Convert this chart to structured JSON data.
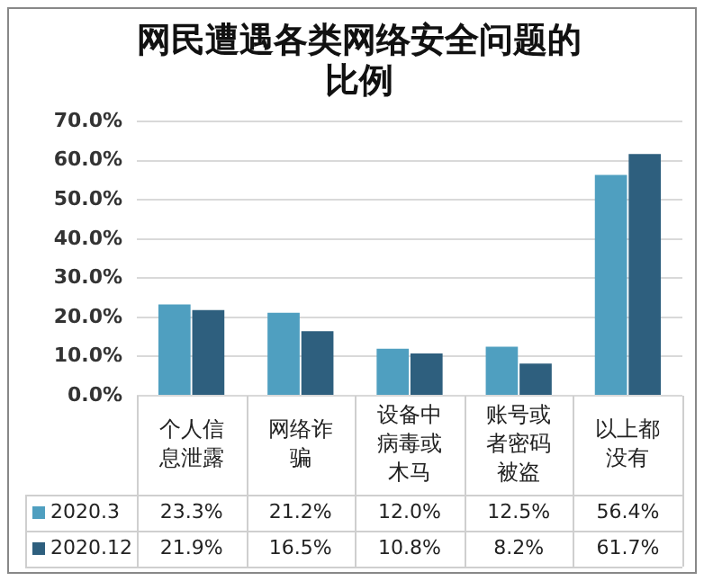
{
  "chart_data": {
    "type": "bar",
    "title": "网民遭遇各类网络安全问题的比例",
    "categories": [
      "个人信息泄露",
      "网络诈骗",
      "设备中病毒或木马",
      "账号或者密码被盗",
      "以上都没有"
    ],
    "series": [
      {
        "name": "2020.3",
        "color": "#4f9fc0",
        "values": [
          23.3,
          21.2,
          12.0,
          12.5,
          56.4
        ],
        "value_labels": [
          "23.3%",
          "21.2%",
          "12.0%",
          "12.5%",
          "56.4%"
        ]
      },
      {
        "name": "2020.12",
        "color": "#2e5f7e",
        "values": [
          21.9,
          16.5,
          10.8,
          8.2,
          61.7
        ],
        "value_labels": [
          "21.9%",
          "16.5%",
          "10.8%",
          "8.2%",
          "61.7%"
        ]
      }
    ],
    "ylim": [
      0,
      70
    ],
    "yticks": [
      {
        "value": 0,
        "label": "0.0%"
      },
      {
        "value": 10,
        "label": "10.0%"
      },
      {
        "value": 20,
        "label": "20.0%"
      },
      {
        "value": 30,
        "label": "30.0%"
      },
      {
        "value": 40,
        "label": "40.0%"
      },
      {
        "value": 50,
        "label": "50.0%"
      },
      {
        "value": 60,
        "label": "60.0%"
      },
      {
        "value": 70,
        "label": "70.0%"
      }
    ],
    "grid": "y",
    "legend": "bottom"
  }
}
